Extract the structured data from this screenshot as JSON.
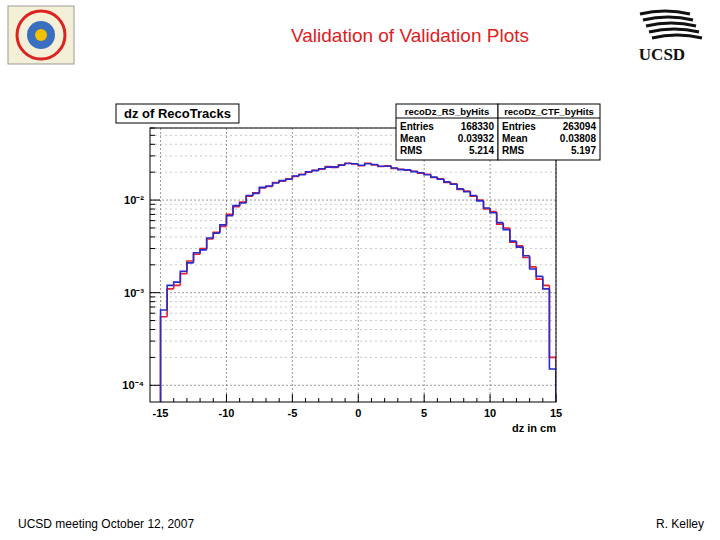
{
  "slide": {
    "title": "Validation of Validation Plots",
    "logo_text": "UCSD",
    "footer_left": "UCSD meeting October 12, 2007",
    "footer_right": "R. Kelley"
  },
  "chart_data": {
    "type": "histogram",
    "title": "dz of RecoTracks",
    "x_label": "dz in cm",
    "log": "y",
    "grid": true,
    "xlim": [
      -15.8,
      15
    ],
    "ylim": [
      6.6e-05,
      0.06
    ],
    "xticks": [
      -15,
      -10,
      -5,
      0,
      5,
      10,
      15
    ],
    "yticks": [
      {
        "value": 0.0001,
        "label": "10⁻⁴"
      },
      {
        "value": 0.001,
        "label": "10⁻³"
      },
      {
        "value": 0.01,
        "label": "10⁻²"
      }
    ],
    "stats_labels": [
      "Entries",
      "Mean",
      "RMS"
    ],
    "bins": [
      -15,
      -14.5,
      -14,
      -13.5,
      -13,
      -12.5,
      -12,
      -11.5,
      -11,
      -10.5,
      -10,
      -9.5,
      -9,
      -8.5,
      -8,
      -7.5,
      -7,
      -6.5,
      -6,
      -5.5,
      -5,
      -4.5,
      -4,
      -3.5,
      -3,
      -2.5,
      -2,
      -1.5,
      -1,
      -0.5,
      0,
      0.5,
      1,
      1.5,
      2,
      2.5,
      3,
      3.5,
      4,
      4.5,
      5,
      5.5,
      6,
      6.5,
      7,
      7.5,
      8,
      8.5,
      9,
      9.5,
      10,
      10.5,
      11,
      11.5,
      12,
      12.5,
      13,
      13.5,
      14,
      14.5,
      15
    ],
    "series": [
      {
        "name": "recoDz_RS_byHits",
        "color": "#e8202a",
        "entries": 168330,
        "mean": 0.03932,
        "rms": 5.214,
        "values": [
          0.00055,
          0.0011,
          0.0012,
          0.0016,
          0.0022,
          0.0026,
          0.003,
          0.0038,
          0.0045,
          0.0052,
          0.007,
          0.0085,
          0.0095,
          0.011,
          0.012,
          0.0135,
          0.014,
          0.0155,
          0.016,
          0.017,
          0.018,
          0.019,
          0.02,
          0.021,
          0.0215,
          0.023,
          0.0225,
          0.024,
          0.025,
          0.0245,
          0.0235,
          0.025,
          0.024,
          0.023,
          0.0235,
          0.022,
          0.0215,
          0.021,
          0.0205,
          0.0195,
          0.019,
          0.0175,
          0.017,
          0.0155,
          0.015,
          0.013,
          0.0125,
          0.011,
          0.01,
          0.008,
          0.0075,
          0.0055,
          0.005,
          0.0035,
          0.0032,
          0.0024,
          0.0019,
          0.0014,
          0.0012,
          0.0002
        ]
      },
      {
        "name": "recoDz_CTF_byHits",
        "color": "#2a2ad0",
        "entries": 263094,
        "mean": 0.03808,
        "rms": 5.197,
        "values": [
          0.00065,
          0.0012,
          0.0013,
          0.0017,
          0.0021,
          0.0027,
          0.0029,
          0.0039,
          0.0044,
          0.0054,
          0.0068,
          0.0087,
          0.0093,
          0.0112,
          0.0118,
          0.0137,
          0.0142,
          0.0153,
          0.0162,
          0.0168,
          0.0182,
          0.0188,
          0.0202,
          0.0208,
          0.0218,
          0.0227,
          0.0228,
          0.0238,
          0.0248,
          0.0247,
          0.0238,
          0.0247,
          0.0242,
          0.0232,
          0.0232,
          0.0222,
          0.0213,
          0.0212,
          0.0203,
          0.0197,
          0.0188,
          0.0177,
          0.0168,
          0.0157,
          0.0148,
          0.0132,
          0.0123,
          0.0112,
          0.0098,
          0.0082,
          0.0073,
          0.0057,
          0.0048,
          0.0036,
          0.0031,
          0.0025,
          0.0018,
          0.0015,
          0.0011,
          0.00015
        ]
      }
    ]
  }
}
